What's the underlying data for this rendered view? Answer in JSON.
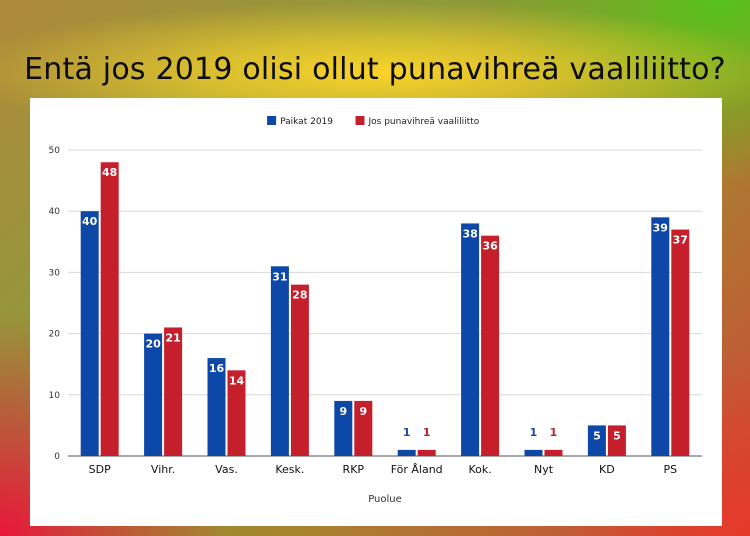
{
  "title": "Entä jos 2019 olisi ollut punavihreä vaaliliitto?",
  "colors": {
    "series1": "#0d47a8",
    "series2": "#c41f2b",
    "grid": "#d8d8d8"
  },
  "chart_data": {
    "type": "bar",
    "categories": [
      "SDP",
      "Vihr.",
      "Vas.",
      "Kesk.",
      "RKP",
      "För Åland",
      "Kok.",
      "Nyt",
      "KD",
      "PS"
    ],
    "series": [
      {
        "name": "Paikat 2019",
        "values": [
          40,
          20,
          16,
          31,
          9,
          1,
          38,
          1,
          5,
          39
        ]
      },
      {
        "name": "Jos punavihreä vaaliliitto",
        "values": [
          48,
          21,
          14,
          28,
          9,
          1,
          36,
          1,
          5,
          37
        ]
      }
    ],
    "xlabel": "Puolue",
    "ylabel": "",
    "ylim": [
      0,
      50
    ],
    "yticks": [
      0,
      10,
      20,
      30,
      40,
      50
    ],
    "grid": true,
    "legend": "top"
  }
}
